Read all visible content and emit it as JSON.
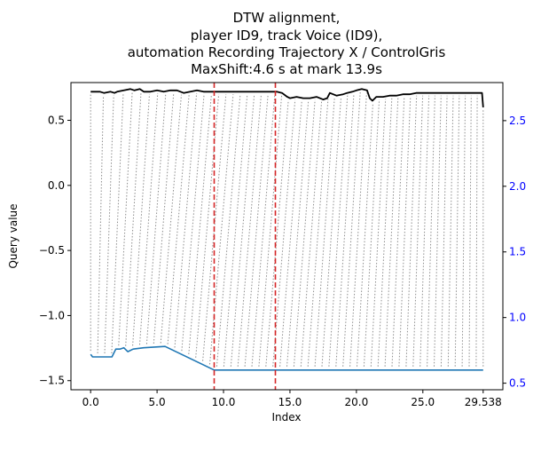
{
  "chart_data": {
    "type": "line",
    "title_lines": [
      "DTW alignment,",
      "player ID9, track Voice (ID9),",
      "automation Recording Trajectory X / ControlGris",
      "MaxShift:4.6 s at mark 13.9s"
    ],
    "xlabel": "Index",
    "ylabel": "Query value",
    "xlim": [
      -1.48,
      31.02
    ],
    "ylim": [
      -1.57,
      0.79
    ],
    "y2lim": [
      0.45,
      2.79
    ],
    "x_ticks": [
      0.0,
      5.0,
      10.0,
      15.0,
      20.0,
      25.0,
      29.538
    ],
    "x_tick_labels": [
      "0.0",
      "5.0",
      "10.0",
      "15.0",
      "20.0",
      "25.0",
      "29.538"
    ],
    "y_ticks": [
      0.5,
      0.0,
      -0.5,
      -1.0,
      -1.5
    ],
    "y_tick_labels": [
      "0.5",
      "0.0",
      "−0.5",
      "−1.0",
      "−1.5"
    ],
    "y2_ticks": [
      2.5,
      2.0,
      1.5,
      1.0,
      0.5
    ],
    "y2_tick_labels": [
      "2.5",
      "2.0",
      "1.5",
      "1.0",
      "0.5"
    ],
    "grid": false,
    "colors": {
      "query": "#000000",
      "reference": "#1f77b4",
      "mark": "#d62728",
      "connector": "#8c8c8c",
      "right_axis": "#0000ff"
    },
    "series": [
      {
        "axis": "left",
        "color": "#000000",
        "x": [
          0.0,
          0.7,
          1.0,
          1.5,
          1.8,
          2.0,
          2.5,
          3.0,
          3.3,
          3.7,
          4.0,
          4.5,
          5.0,
          5.5,
          6.0,
          6.5,
          7.0,
          7.5,
          8.0,
          8.5,
          9.0,
          9.5,
          10.0,
          10.5,
          11.0,
          11.5,
          12.0,
          12.5,
          13.0,
          13.5,
          14.0,
          14.4,
          14.8,
          15.0,
          15.5,
          16.0,
          16.5,
          17.0,
          17.5,
          17.8,
          18.0,
          18.5,
          19.0,
          19.3,
          19.7,
          20.0,
          20.4,
          20.8,
          21.0,
          21.2,
          21.5,
          22.0,
          22.5,
          23.0,
          23.5,
          24.0,
          24.5,
          25.0,
          25.5,
          26.0,
          26.5,
          27.0,
          27.5,
          28.0,
          28.5,
          29.0,
          29.45,
          29.538
        ],
        "values": [
          0.72,
          0.72,
          0.71,
          0.72,
          0.71,
          0.72,
          0.73,
          0.74,
          0.73,
          0.74,
          0.72,
          0.72,
          0.73,
          0.72,
          0.73,
          0.73,
          0.71,
          0.72,
          0.73,
          0.72,
          0.72,
          0.72,
          0.72,
          0.72,
          0.72,
          0.72,
          0.72,
          0.72,
          0.72,
          0.72,
          0.72,
          0.71,
          0.68,
          0.67,
          0.68,
          0.67,
          0.67,
          0.68,
          0.66,
          0.67,
          0.71,
          0.69,
          0.7,
          0.71,
          0.72,
          0.73,
          0.74,
          0.73,
          0.67,
          0.65,
          0.68,
          0.68,
          0.69,
          0.69,
          0.7,
          0.7,
          0.71,
          0.71,
          0.71,
          0.71,
          0.71,
          0.71,
          0.71,
          0.71,
          0.71,
          0.71,
          0.71,
          0.6
        ]
      },
      {
        "axis": "right",
        "color": "#1f77b4",
        "x": [
          0.0,
          0.15,
          1.6,
          1.9,
          2.2,
          2.5,
          2.8,
          3.2,
          4.0,
          5.6,
          9.3,
          28.0,
          29.538
        ],
        "values": [
          0.72,
          0.7,
          0.7,
          0.76,
          0.76,
          0.77,
          0.74,
          0.76,
          0.77,
          0.78,
          0.6,
          0.6,
          0.6
        ]
      }
    ],
    "vertical_marks": [
      9.3,
      13.9
    ],
    "alignment_connectors": 56
  }
}
